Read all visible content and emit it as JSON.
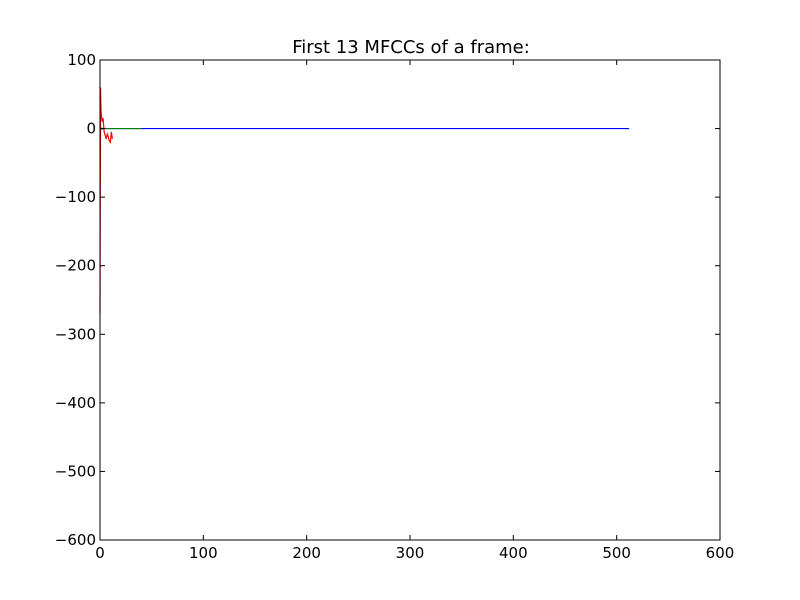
{
  "chart_data": {
    "type": "line",
    "title": "First 13 MFCCs of a frame:",
    "xlabel": "",
    "ylabel": "",
    "xlim": [
      0,
      600
    ],
    "ylim": [
      -600,
      100
    ],
    "grid": false,
    "x_ticks": [
      0,
      100,
      200,
      300,
      400,
      500,
      600
    ],
    "y_ticks": [
      100,
      0,
      -100,
      -200,
      -300,
      -400,
      -500,
      -600
    ],
    "x_tick_labels": [
      "0",
      "100",
      "200",
      "300",
      "400",
      "500",
      "600"
    ],
    "y_tick_labels": [
      "100",
      "0",
      "−100",
      "−200",
      "−300",
      "−400",
      "−500",
      "−600"
    ],
    "series": [
      {
        "color": "#0000ff",
        "x": [
          0,
          1,
          2,
          5,
          512
        ],
        "y": [
          0,
          0,
          0,
          0,
          0
        ]
      },
      {
        "color": "#008000",
        "x": [
          0,
          1,
          2,
          3,
          5,
          10,
          20,
          30,
          40
        ],
        "y": [
          -2,
          1,
          -1,
          0.5,
          0,
          0,
          0,
          0,
          0
        ]
      },
      {
        "color": "#ff0000",
        "x": [
          0,
          0.5,
          1,
          2,
          3,
          4,
          5,
          6,
          7,
          8,
          9,
          10,
          11,
          12
        ],
        "y": [
          -270,
          60,
          25,
          10,
          15,
          -5,
          -10,
          -15,
          -8,
          -12,
          -18,
          -20,
          -5,
          -15
        ]
      }
    ]
  }
}
